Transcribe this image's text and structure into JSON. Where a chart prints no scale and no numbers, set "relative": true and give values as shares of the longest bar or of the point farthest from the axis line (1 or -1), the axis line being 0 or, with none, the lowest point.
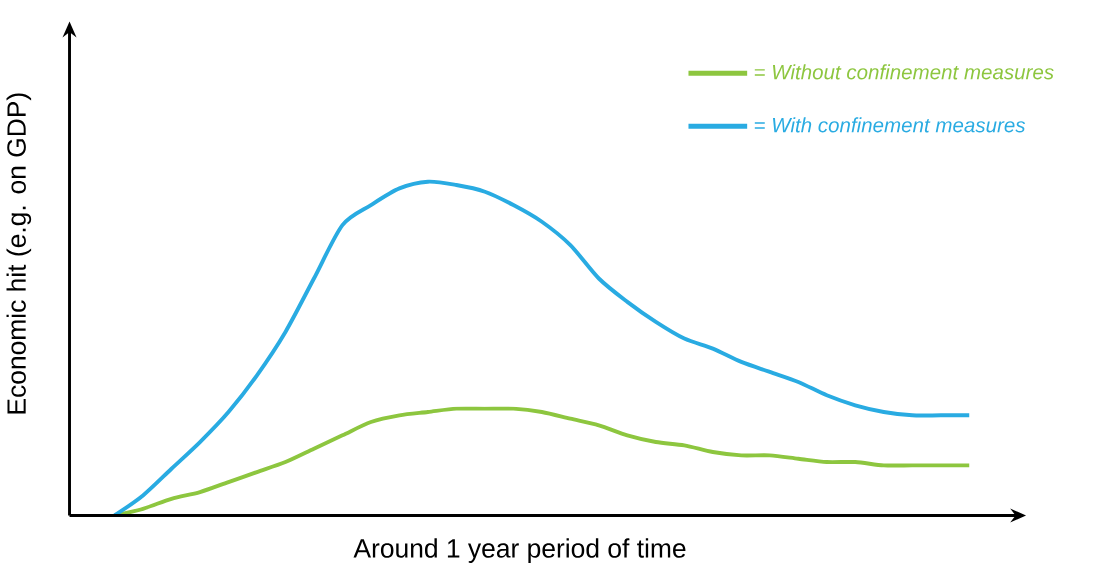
{
  "chart_data": {
    "type": "line",
    "relative": true,
    "xlabel": "Around 1 year period of time",
    "ylabel": "Economic hit (e.g. on GDP)",
    "categories": [
      null,
      null,
      null,
      null,
      null,
      null,
      null,
      null,
      null,
      null,
      null,
      null,
      null,
      null,
      null,
      null,
      null,
      null,
      null,
      null,
      null,
      null,
      null,
      null,
      null,
      null,
      null,
      null,
      null,
      null,
      null
    ],
    "series": [
      {
        "name": "= Without confinement measures",
        "color": "#8dc63f",
        "values": [
          0,
          0.02,
          0.05,
          0.07,
          0.1,
          0.13,
          0.16,
          0.2,
          0.24,
          0.28,
          0.3,
          0.31,
          0.32,
          0.32,
          0.32,
          0.31,
          0.29,
          0.27,
          0.24,
          0.22,
          0.21,
          0.19,
          0.18,
          0.18,
          0.17,
          0.16,
          0.16,
          0.15,
          0.15,
          0.15,
          0.15
        ]
      },
      {
        "name": "= With confinement measures",
        "color": "#29abe2",
        "values": [
          0,
          0.06,
          0.14,
          0.22,
          0.31,
          0.42,
          0.55,
          0.71,
          0.87,
          0.93,
          0.98,
          1,
          0.99,
          0.97,
          0.93,
          0.88,
          0.81,
          0.71,
          0.64,
          0.58,
          0.53,
          0.5,
          0.46,
          0.43,
          0.4,
          0.36,
          0.33,
          0.31,
          0.3,
          0.3,
          0.3
        ]
      }
    ],
    "legend": "top right",
    "marker": "none",
    "line_style": "solid"
  }
}
